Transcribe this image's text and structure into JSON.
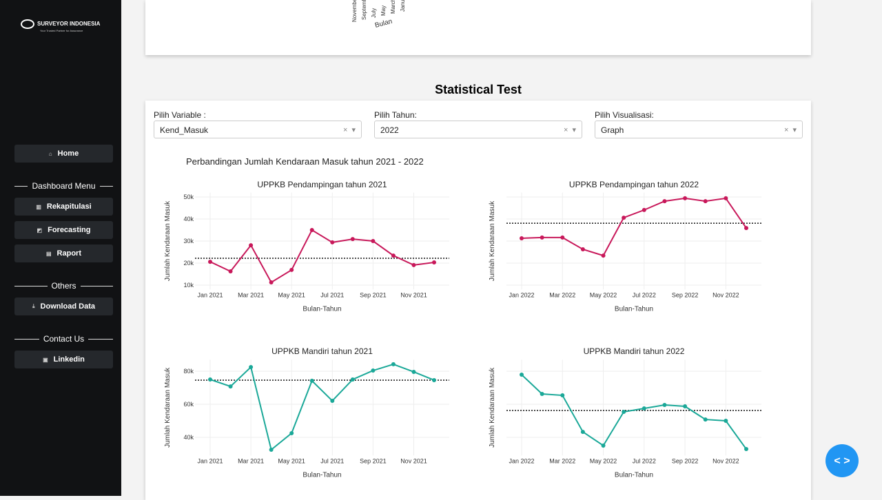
{
  "sidebar": {
    "logo": "SURVEYOR INDONESIA",
    "tagline": "Your Trusted Partner for Assurance",
    "home": "Home",
    "dashboard_menu": {
      "title": "Dashboard Menu",
      "items": [
        "Rekapitulasi",
        "Forecasting",
        "Raport"
      ]
    },
    "others": {
      "title": "Others",
      "items": [
        "Download Data"
      ]
    },
    "contact": {
      "title": "Contact Us",
      "items": [
        "Linkedin"
      ]
    }
  },
  "top_card": {
    "x_axis_title": "Bulan",
    "tick_labels": [
      "November",
      "September",
      "July",
      "May",
      "March",
      "January"
    ]
  },
  "section_title": "Statistical Test",
  "filters": [
    {
      "label": "Pilih Variable :",
      "value": "Kend_Masuk"
    },
    {
      "label": "Pilih Tahun:",
      "value": "2022"
    },
    {
      "label": "Pilih Visualisasi:",
      "value": "Graph"
    }
  ],
  "figure_title": "Perbandingan Jumlah Kendaraan Masuk tahun 2021 - 2022",
  "chart_data": [
    {
      "type": "line",
      "title": "UPPKB Pendampingan tahun 2021",
      "x_label": "Bulan-Tahun",
      "y_label": "Jumlah Kendaraan Masuk",
      "color": "#c8185a",
      "x": [
        "2021-01",
        "2021-02",
        "2021-03",
        "2021-04",
        "2021-05",
        "2021-06",
        "2021-07",
        "2021-08",
        "2021-09",
        "2021-10",
        "2021-11",
        "2021-12"
      ],
      "values": [
        20600,
        16250,
        28100,
        11250,
        16900,
        35000,
        29400,
        30900,
        30000,
        23400,
        19100,
        20300
      ],
      "reference_line": 22200,
      "xlim": [
        "2021-01",
        "2021-12"
      ],
      "ylim": [
        8000,
        52000
      ],
      "xticks": [
        {
          "value": "2021-01",
          "label": "Jan 2021"
        },
        {
          "value": "2021-03",
          "label": "Mar 2021"
        },
        {
          "value": "2021-05",
          "label": "May 2021"
        },
        {
          "value": "2021-07",
          "label": "Jul 2021"
        },
        {
          "value": "2021-09",
          "label": "Sep 2021"
        },
        {
          "value": "2021-11",
          "label": "Nov 2021"
        }
      ],
      "yticks": [
        {
          "value": 10000,
          "label": "10k"
        },
        {
          "value": 20000,
          "label": "20k"
        },
        {
          "value": 30000,
          "label": "30k"
        },
        {
          "value": 40000,
          "label": "40k"
        },
        {
          "value": 50000,
          "label": "50k"
        }
      ],
      "grid": true
    },
    {
      "type": "line",
      "title": "UPPKB Pendampingan tahun 2022",
      "x_label": "Bulan-Tahun",
      "y_label": "Jumlah Kendaraan Masuk",
      "color": "#c8185a",
      "x": [
        "2022-01",
        "2022-02",
        "2022-03",
        "2022-04",
        "2022-05",
        "2022-06",
        "2022-07",
        "2022-08",
        "2022-09",
        "2022-10",
        "2022-11",
        "2022-12"
      ],
      "values": [
        31250,
        31600,
        31600,
        26250,
        23400,
        40600,
        44100,
        48100,
        49400,
        48100,
        49400,
        35900
      ],
      "reference_line": 38100,
      "xlim": [
        "2022-01",
        "2022-12"
      ],
      "ylim": [
        8000,
        52000
      ],
      "xticks": [
        {
          "value": "2022-01",
          "label": "Jan 2022"
        },
        {
          "value": "2022-03",
          "label": "Mar 2022"
        },
        {
          "value": "2022-05",
          "label": "May 2022"
        },
        {
          "value": "2022-07",
          "label": "Jul 2022"
        },
        {
          "value": "2022-09",
          "label": "Sep 2022"
        },
        {
          "value": "2022-11",
          "label": "Nov 2022"
        }
      ],
      "yticks": [
        10000,
        20000,
        30000,
        40000,
        50000
      ],
      "grid": true
    },
    {
      "type": "line",
      "title": "UPPKB Mandiri tahun 2021",
      "x_label": "Bulan-Tahun",
      "y_label": "Jumlah Kendaraan Masuk",
      "color": "#1aa898",
      "x": [
        "2021-01",
        "2021-02",
        "2021-03",
        "2021-04",
        "2021-05",
        "2021-06",
        "2021-07",
        "2021-08",
        "2021-09",
        "2021-10",
        "2021-11",
        "2021-12"
      ],
      "values": [
        75000,
        70800,
        82500,
        32500,
        42500,
        74200,
        62100,
        75000,
        80400,
        84200,
        79600,
        74600
      ],
      "reference_line": 74600,
      "xlim": [
        "2021-01",
        "2021-12"
      ],
      "ylim": [
        29000,
        87000
      ],
      "xticks": [
        {
          "value": "2021-01",
          "label": "Jan 2021"
        },
        {
          "value": "2021-03",
          "label": "Mar 2021"
        },
        {
          "value": "2021-05",
          "label": "May 2021"
        },
        {
          "value": "2021-07",
          "label": "Jul 2021"
        },
        {
          "value": "2021-09",
          "label": "Sep 2021"
        },
        {
          "value": "2021-11",
          "label": "Nov 2021"
        }
      ],
      "yticks": [
        {
          "value": 40000,
          "label": "40k"
        },
        {
          "value": 60000,
          "label": "60k"
        },
        {
          "value": 80000,
          "label": "80k"
        }
      ],
      "grid": true
    },
    {
      "type": "line",
      "title": "UPPKB Mandiri tahun 2022",
      "x_label": "Bulan-Tahun",
      "y_label": "Jumlah Kendaraan Masuk",
      "color": "#1aa898",
      "x": [
        "2022-01",
        "2022-02",
        "2022-03",
        "2022-04",
        "2022-05",
        "2022-06",
        "2022-07",
        "2022-08",
        "2022-09",
        "2022-10",
        "2022-11",
        "2022-12"
      ],
      "values": [
        77900,
        66250,
        65400,
        43300,
        35000,
        55400,
        57500,
        59600,
        58750,
        50800,
        50000,
        32900
      ],
      "reference_line": 56250,
      "xlim": [
        "2022-01",
        "2022-12"
      ],
      "ylim": [
        29000,
        87000
      ],
      "xticks": [
        {
          "value": "2022-01",
          "label": "Jan 2022"
        },
        {
          "value": "2022-03",
          "label": "Mar 2022"
        },
        {
          "value": "2022-05",
          "label": "May 2022"
        },
        {
          "value": "2022-07",
          "label": "Jul 2022"
        },
        {
          "value": "2022-09",
          "label": "Sep 2022"
        },
        {
          "value": "2022-11",
          "label": "Nov 2022"
        }
      ],
      "yticks": [
        40000,
        60000,
        80000
      ],
      "grid": true
    }
  ]
}
